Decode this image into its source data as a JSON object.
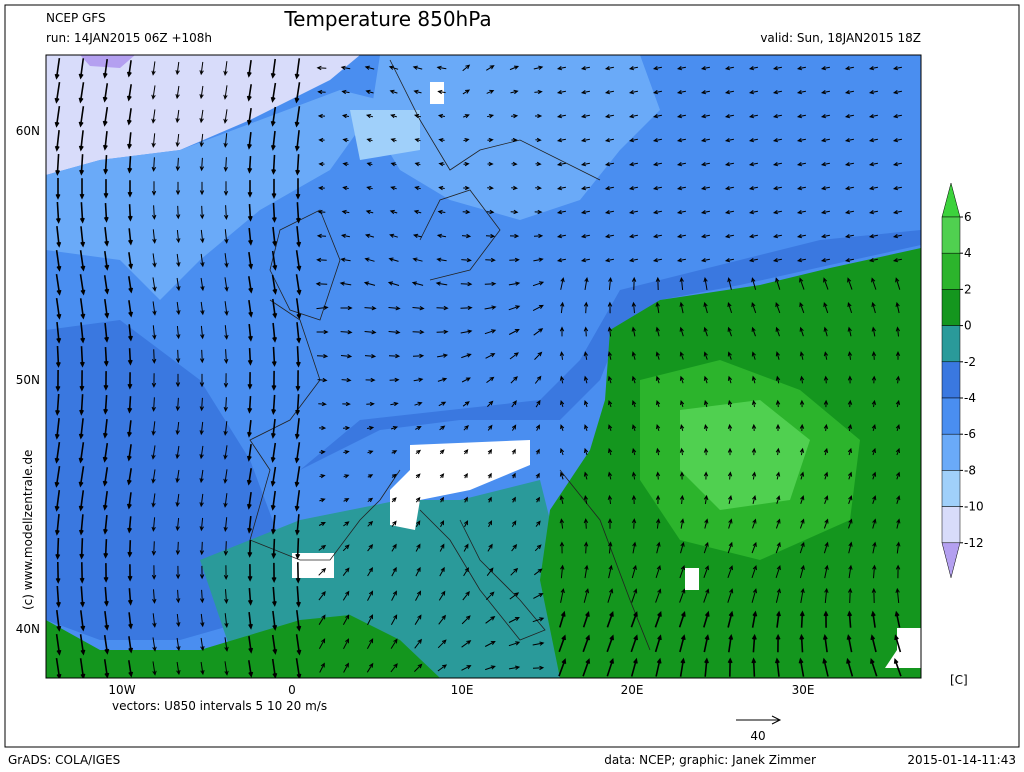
{
  "header": {
    "model": "NCEP GFS",
    "run": "run: 14JAN2015 06Z +108h",
    "title": "Temperature 850hPa",
    "valid": "valid: Sun, 18JAN2015 18Z"
  },
  "map": {
    "lat_labels": [
      "60N",
      "50N",
      "40N"
    ],
    "lon_labels": [
      "10W",
      "0",
      "10E",
      "20E",
      "30E"
    ],
    "copyright": "(c) www.modellzentrale.de",
    "vectors_note": "vectors: U850 intervals 5 10 20 m/s",
    "reference_vector": "40"
  },
  "colorbar": {
    "ticks": [
      6,
      4,
      2,
      0,
      -2,
      -4,
      -6,
      -8,
      -10,
      -12
    ],
    "colors": [
      "#3cd23c",
      "#50d050",
      "#2cb42c",
      "#14961e",
      "#2a9a9a",
      "#3a78e0",
      "#4a8ef0",
      "#6aaaf8",
      "#a0d0fa",
      "#d8dcfa",
      "#b4a0f0"
    ],
    "unit": "[C]"
  },
  "footer": {
    "software": "GrADS: COLA/IGES",
    "credit": "data: NCEP; graphic: Janek Zimmer",
    "timestamp": "2015-01-14-11:43"
  }
}
